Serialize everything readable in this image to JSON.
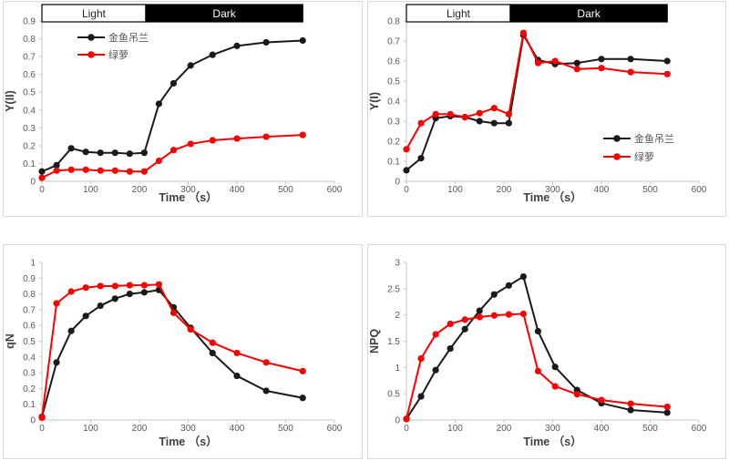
{
  "figure": {
    "background": "#ffffff",
    "panel_border_color": "#d9d9d9"
  },
  "colors": {
    "black_series": "#1a1a1a",
    "red_series": "#fe0000",
    "axis_line": "#c6c6c6",
    "tick_text": "#595959",
    "title_text": "#3f3f3f",
    "legend_text": "#595959",
    "bar_dark_fill": "#000000",
    "bar_light_fill": "#ffffff",
    "bar_outline": "#000000",
    "bar_light_text": "#262626",
    "bar_dark_text": "#ffffff"
  },
  "phase_bar": {
    "light_label": "Light",
    "dark_label": "Dark",
    "light_span_s": [
      0,
      213
    ],
    "dark_span_s": [
      213,
      535
    ]
  },
  "series_names": [
    "金鱼吊兰",
    "绿萝"
  ],
  "chart_data": [
    {
      "id": "y2",
      "panel": "top-left",
      "type": "line",
      "title": "",
      "ylabel": "Y(II)",
      "xlabel": "Time （s）",
      "xlim": [
        0,
        600
      ],
      "ylim": [
        0,
        0.9
      ],
      "grid": false,
      "xticks": [
        0,
        100,
        200,
        300,
        400,
        500,
        600
      ],
      "xtick_labels": [
        "0",
        "100",
        "200",
        "300",
        "400",
        "500",
        "600"
      ],
      "yticks": [
        0,
        0.1,
        0.2,
        0.3,
        0.4,
        0.5,
        0.6,
        0.7,
        0.8,
        0.9
      ],
      "ytick_labels": [
        "0",
        "0.1",
        "0.2",
        "0.3",
        "0.4",
        "0.5",
        "0.6",
        "0.7",
        "0.8",
        "0.9"
      ],
      "show_phase_bar": true,
      "legend": {
        "show": true,
        "position": "upper-left"
      },
      "x": [
        0,
        30,
        60,
        90,
        120,
        150,
        180,
        210,
        240,
        270,
        305,
        350,
        400,
        460,
        535
      ],
      "series": [
        {
          "name": "金鱼吊兰",
          "color_key": "black_series",
          "values": [
            0.055,
            0.09,
            0.185,
            0.165,
            0.16,
            0.16,
            0.155,
            0.16,
            0.435,
            0.55,
            0.65,
            0.71,
            0.76,
            0.78,
            0.79
          ]
        },
        {
          "name": "绿萝",
          "color_key": "red_series",
          "values": [
            0.02,
            0.06,
            0.065,
            0.065,
            0.06,
            0.06,
            0.055,
            0.055,
            0.115,
            0.175,
            0.21,
            0.23,
            0.24,
            0.25,
            0.26
          ]
        }
      ]
    },
    {
      "id": "y1",
      "panel": "top-right",
      "type": "line",
      "title": "",
      "ylabel": "Y(I)",
      "xlabel": "Time （s）",
      "xlim": [
        0,
        600
      ],
      "ylim": [
        0,
        0.8
      ],
      "grid": false,
      "xticks": [
        0,
        100,
        200,
        300,
        400,
        500,
        600
      ],
      "xtick_labels": [
        "0",
        "100",
        "200",
        "300",
        "400",
        "500",
        "600"
      ],
      "yticks": [
        0,
        0.1,
        0.2,
        0.3,
        0.4,
        0.5,
        0.6,
        0.7,
        0.8
      ],
      "ytick_labels": [
        "0",
        "0.1",
        "0.2",
        "0.3",
        "0.4",
        "0.5",
        "0.6",
        "0.7",
        "0.8"
      ],
      "show_phase_bar": true,
      "legend": {
        "show": true,
        "position": "lower-right"
      },
      "x": [
        0,
        30,
        60,
        90,
        120,
        150,
        180,
        210,
        240,
        270,
        305,
        350,
        400,
        460,
        535
      ],
      "series": [
        {
          "name": "金鱼吊兰",
          "color_key": "black_series",
          "values": [
            0.055,
            0.115,
            0.315,
            0.325,
            0.32,
            0.3,
            0.29,
            0.29,
            0.73,
            0.605,
            0.585,
            0.59,
            0.61,
            0.61,
            0.6
          ]
        },
        {
          "name": "绿萝",
          "color_key": "red_series",
          "values": [
            0.16,
            0.29,
            0.335,
            0.335,
            0.32,
            0.34,
            0.365,
            0.335,
            0.74,
            0.59,
            0.6,
            0.56,
            0.565,
            0.545,
            0.535
          ]
        }
      ]
    },
    {
      "id": "qn",
      "panel": "bottom-left",
      "type": "line",
      "title": "",
      "ylabel": "qN",
      "xlabel": "Time （s）",
      "xlim": [
        0,
        600
      ],
      "ylim": [
        0,
        1
      ],
      "grid": false,
      "xticks": [
        0,
        100,
        200,
        300,
        400,
        500,
        600
      ],
      "xtick_labels": [
        "0",
        "100",
        "200",
        "300",
        "400",
        "500",
        "600"
      ],
      "yticks": [
        0,
        0.1,
        0.2,
        0.3,
        0.4,
        0.5,
        0.6,
        0.7,
        0.8,
        0.9,
        1
      ],
      "ytick_labels": [
        "0",
        "0.1",
        "0.2",
        "0.3",
        "0.4",
        "0.5",
        "0.6",
        "0.7",
        "0.8",
        "0.9",
        "1"
      ],
      "show_phase_bar": false,
      "legend": {
        "show": false,
        "position": "none"
      },
      "x": [
        0,
        30,
        60,
        90,
        120,
        150,
        180,
        210,
        240,
        270,
        305,
        350,
        400,
        460,
        535
      ],
      "series": [
        {
          "name": "金鱼吊兰",
          "color_key": "black_series",
          "values": [
            0.02,
            0.365,
            0.565,
            0.66,
            0.725,
            0.77,
            0.8,
            0.81,
            0.825,
            0.715,
            0.585,
            0.425,
            0.28,
            0.185,
            0.14
          ]
        },
        {
          "name": "绿萝",
          "color_key": "red_series",
          "values": [
            0.015,
            0.74,
            0.815,
            0.84,
            0.85,
            0.85,
            0.855,
            0.855,
            0.86,
            0.68,
            0.575,
            0.49,
            0.425,
            0.365,
            0.31
          ]
        }
      ]
    },
    {
      "id": "npq",
      "panel": "bottom-right",
      "type": "line",
      "title": "",
      "ylabel": "NPQ",
      "xlabel": "Time （s）",
      "xlim": [
        0,
        600
      ],
      "ylim": [
        0,
        3
      ],
      "grid": false,
      "xticks": [
        0,
        100,
        200,
        300,
        400,
        500,
        600
      ],
      "xtick_labels": [
        "0",
        "100",
        "200",
        "300",
        "400",
        "500",
        "600"
      ],
      "yticks": [
        0,
        0.5,
        1,
        1.5,
        2,
        2.5,
        3
      ],
      "ytick_labels": [
        "0",
        "0.5",
        "1",
        "1.5",
        "2",
        "2.5",
        "3"
      ],
      "show_phase_bar": false,
      "legend": {
        "show": false,
        "position": "none"
      },
      "x": [
        0,
        30,
        60,
        90,
        120,
        150,
        180,
        210,
        240,
        270,
        305,
        350,
        400,
        460,
        535
      ],
      "series": [
        {
          "name": "金鱼吊兰",
          "color_key": "black_series",
          "values": [
            0.02,
            0.45,
            0.95,
            1.36,
            1.73,
            2.08,
            2.39,
            2.56,
            2.73,
            1.69,
            1.01,
            0.57,
            0.32,
            0.19,
            0.14
          ]
        },
        {
          "name": "绿萝",
          "color_key": "red_series",
          "values": [
            0.02,
            1.17,
            1.63,
            1.83,
            1.91,
            1.96,
            1.99,
            2.01,
            2.02,
            0.93,
            0.64,
            0.49,
            0.38,
            0.31,
            0.25
          ]
        }
      ]
    }
  ]
}
